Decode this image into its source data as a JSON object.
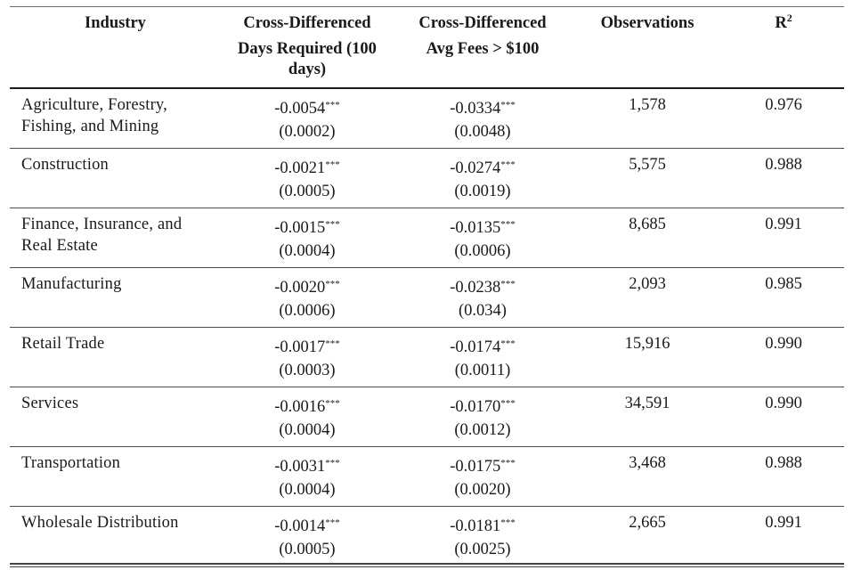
{
  "header": {
    "industry": "Industry",
    "days_line1": "Cross-Differenced",
    "days_line2": "Days Required (100",
    "days_line3": "days)",
    "fees_line1": "Cross-Differenced",
    "fees_line2": "Avg Fees > $100",
    "observations": "Observations",
    "r2_base": "R",
    "r2_sup": "2"
  },
  "rows": [
    {
      "industry_line1": "Agriculture, Forestry,",
      "industry_line2": "Fishing, and Mining",
      "days_coef": "-0.0054",
      "days_stars": "***",
      "days_se": "(0.0002)",
      "fees_coef": "-0.0334",
      "fees_stars": "***",
      "fees_se": "(0.0048)",
      "observations": "1,578",
      "r2": "0.976"
    },
    {
      "industry_line1": "Construction",
      "industry_line2": "",
      "days_coef": "-0.0021",
      "days_stars": "***",
      "days_se": "(0.0005)",
      "fees_coef": "-0.0274",
      "fees_stars": "***",
      "fees_se": "(0.0019)",
      "observations": "5,575",
      "r2": "0.988"
    },
    {
      "industry_line1": "Finance, Insurance, and",
      "industry_line2": "Real Estate",
      "days_coef": "-0.0015",
      "days_stars": "***",
      "days_se": "(0.0004)",
      "fees_coef": "-0.0135",
      "fees_stars": "***",
      "fees_se": "(0.0006)",
      "observations": "8,685",
      "r2": "0.991"
    },
    {
      "industry_line1": "Manufacturing",
      "industry_line2": "",
      "days_coef": "-0.0020",
      "days_stars": "***",
      "days_se": "(0.0006)",
      "fees_coef": "-0.0238",
      "fees_stars": "***",
      "fees_se": "(0.034)",
      "observations": "2,093",
      "r2": "0.985"
    },
    {
      "industry_line1": "Retail Trade",
      "industry_line2": "",
      "days_coef": "-0.0017",
      "days_stars": "***",
      "days_se": "(0.0003)",
      "fees_coef": "-0.0174",
      "fees_stars": "***",
      "fees_se": "(0.0011)",
      "observations": "15,916",
      "r2": "0.990"
    },
    {
      "industry_line1": "Services",
      "industry_line2": "",
      "days_coef": "-0.0016",
      "days_stars": "***",
      "days_se": "(0.0004)",
      "fees_coef": "-0.0170",
      "fees_stars": "***",
      "fees_se": "(0.0012)",
      "observations": "34,591",
      "r2": "0.990"
    },
    {
      "industry_line1": "Transportation",
      "industry_line2": "",
      "days_coef": "-0.0031",
      "days_stars": "***",
      "days_se": "(0.0004)",
      "fees_coef": "-0.0175",
      "fees_stars": "***",
      "fees_se": "(0.0020)",
      "observations": "3,468",
      "r2": "0.988"
    },
    {
      "industry_line1": "Wholesale Distribution",
      "industry_line2": "",
      "days_coef": "-0.0014",
      "days_stars": "***",
      "days_se": "(0.0005)",
      "fees_coef": "-0.0181",
      "fees_stars": "***",
      "fees_se": "(0.0025)",
      "observations": "2,665",
      "r2": "0.991"
    }
  ]
}
